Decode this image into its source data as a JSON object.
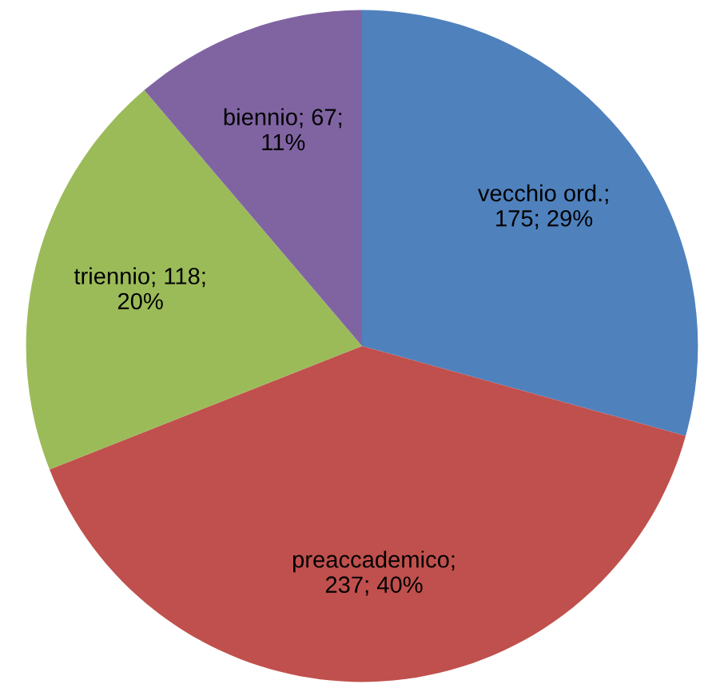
{
  "chart_data": {
    "type": "pie",
    "categories": [
      "vecchio ord.",
      "preaccademico",
      "triennio",
      "biennio"
    ],
    "values": [
      175,
      237,
      118,
      67
    ],
    "value_labels": [
      ";\n175; 29%",
      ";\n237; 40%",
      "; 118;\n20%",
      "; 67;\n11%"
    ],
    "colors": [
      "#4f81bd",
      "#c0504d",
      "#9bbb59",
      "#8064a2"
    ],
    "legend": false
  }
}
